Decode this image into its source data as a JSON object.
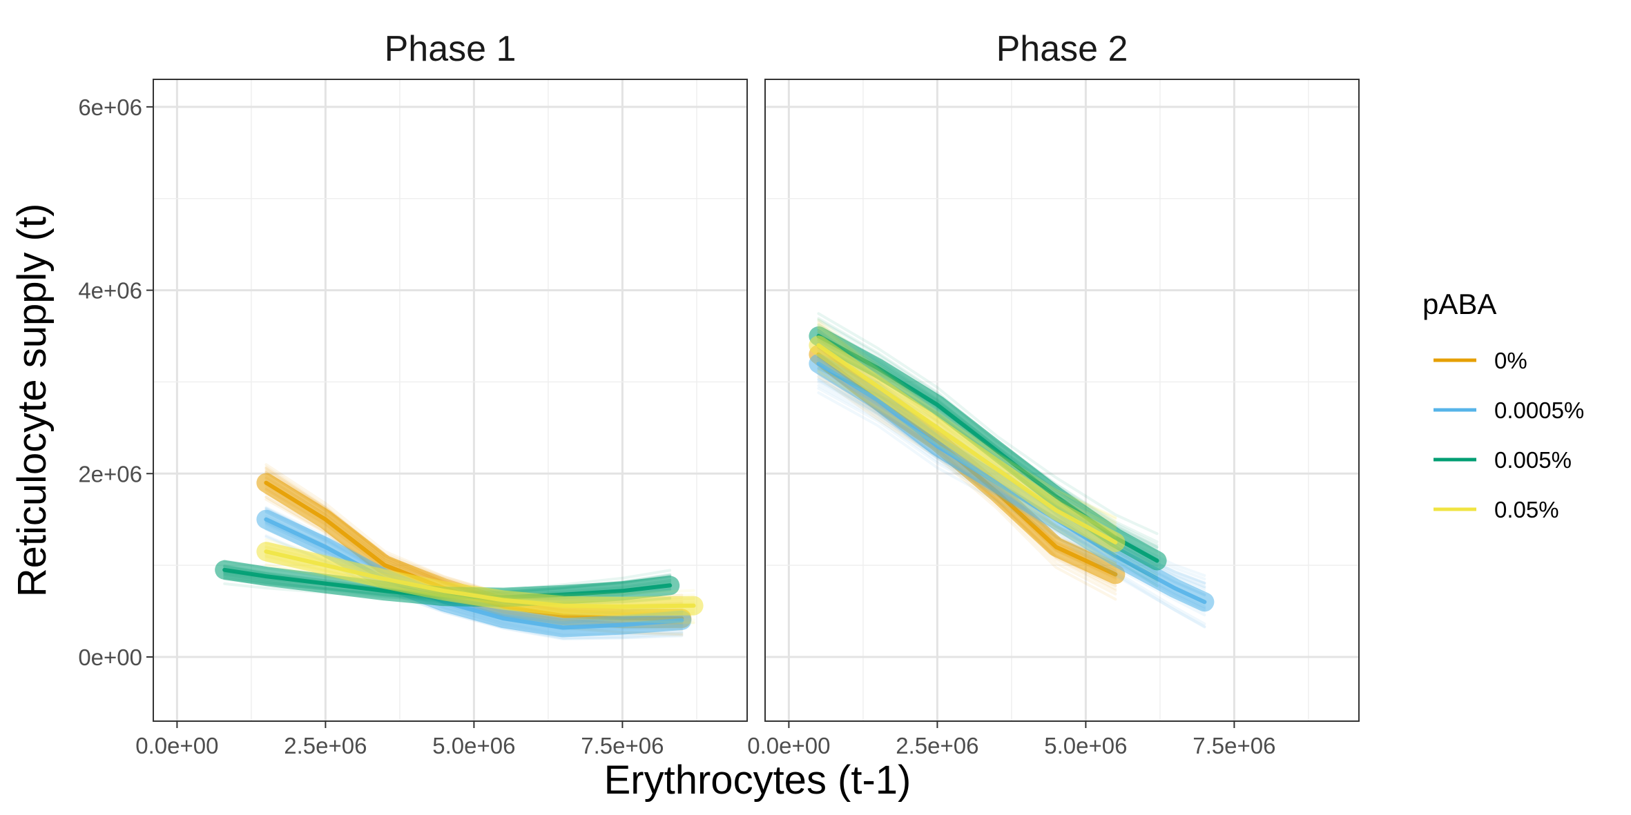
{
  "chart_data": {
    "type": "line",
    "xlabel": "Erythrocytes (t-1)",
    "ylabel": "Reticulocyte supply (t)",
    "x_ticks": [
      "0.0e+00",
      "2.5e+06",
      "5.0e+06",
      "7.5e+06"
    ],
    "x_tick_values": [
      0,
      2500000,
      5000000,
      7500000
    ],
    "y_ticks": [
      "0e+00",
      "2e+06",
      "4e+06",
      "6e+06"
    ],
    "y_tick_values": [
      0,
      2000000,
      4000000,
      6000000
    ],
    "xlim": [
      -400000,
      9600000
    ],
    "ylim": [
      -700000,
      6300000
    ],
    "grid": true,
    "legend": {
      "title": "pABA",
      "placement": "right",
      "entries": [
        {
          "label": "0%",
          "color": "#E69F00"
        },
        {
          "label": "0.0005%",
          "color": "#56B4E9"
        },
        {
          "label": "0.005%",
          "color": "#009E73"
        },
        {
          "label": "0.05%",
          "color": "#F0E442"
        }
      ]
    },
    "panels": [
      {
        "title": "Phase 1",
        "series": [
          {
            "name": "0%",
            "x": [
              1500000,
              2500000,
              3500000,
              4500000,
              5500000,
              6500000,
              7500000,
              8500000
            ],
            "y": [
              1900000,
              1500000,
              1000000,
              750000,
              550000,
              450000,
              420000,
              420000
            ]
          },
          {
            "name": "0.0005%",
            "x": [
              1500000,
              2500000,
              3500000,
              4500000,
              5500000,
              6500000,
              7500000,
              8500000
            ],
            "y": [
              1500000,
              1200000,
              850000,
              600000,
              420000,
              320000,
              350000,
              400000
            ]
          },
          {
            "name": "0.005%",
            "x": [
              800000,
              1500000,
              2500000,
              3500000,
              4500000,
              5500000,
              6500000,
              7500000,
              8300000
            ],
            "y": [
              950000,
              880000,
              800000,
              720000,
              660000,
              650000,
              680000,
              720000,
              780000
            ]
          },
          {
            "name": "0.05%",
            "x": [
              1500000,
              2500000,
              3500000,
              4500000,
              5500000,
              6500000,
              7500000,
              8700000
            ],
            "y": [
              1150000,
              1000000,
              850000,
              720000,
              620000,
              560000,
              550000,
              560000
            ]
          }
        ]
      },
      {
        "title": "Phase 2",
        "series": [
          {
            "name": "0%",
            "x": [
              500000,
              1500000,
              2500000,
              3500000,
              4500000,
              5500000
            ],
            "y": [
              3300000,
              2800000,
              2350000,
              1800000,
              1200000,
              900000
            ]
          },
          {
            "name": "0.0005%",
            "x": [
              500000,
              1500000,
              2500000,
              3500000,
              4500000,
              5500000,
              6500000,
              7000000
            ],
            "y": [
              3200000,
              2800000,
              2300000,
              1900000,
              1500000,
              1100000,
              750000,
              600000
            ]
          },
          {
            "name": "0.005%",
            "x": [
              500000,
              1500000,
              2500000,
              3500000,
              4500000,
              5500000,
              6200000
            ],
            "y": [
              3500000,
              3150000,
              2750000,
              2250000,
              1750000,
              1300000,
              1050000
            ]
          },
          {
            "name": "0.05%",
            "x": [
              500000,
              1500000,
              2500000,
              3500000,
              4500000,
              5500000
            ],
            "y": [
              3400000,
              2950000,
              2500000,
              2050000,
              1600000,
              1250000
            ]
          }
        ]
      }
    ]
  }
}
